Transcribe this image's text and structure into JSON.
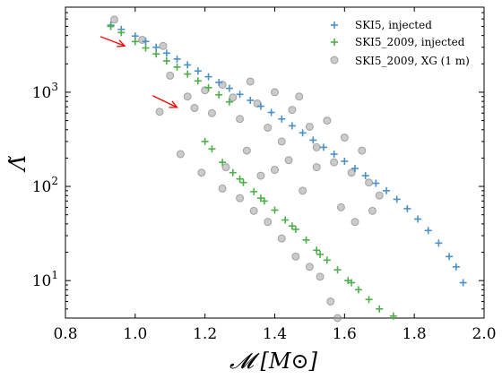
{
  "chart_data": {
    "type": "scatter",
    "xlabel": "𝓜 [M⊙]",
    "ylabel": "Λ̃",
    "xlim": [
      0.8,
      2.0
    ],
    "ylim": [
      4,
      8000
    ],
    "yscale": "log",
    "x_ticks": [
      "0.8",
      "1.0",
      "1.2",
      "1.4",
      "1.6",
      "1.8",
      "2.0"
    ],
    "y_ticks": [
      {
        "base": "10",
        "exp": "1",
        "value": 10
      },
      {
        "base": "10",
        "exp": "2",
        "value": 100
      },
      {
        "base": "10",
        "exp": "3",
        "value": 1000
      }
    ],
    "grid": false,
    "legend_position": "top-right",
    "series": [
      {
        "name": "SKI5, injected",
        "marker": "plus",
        "color": "#4a90c9",
        "points": [
          [
            0.93,
            5150
          ],
          [
            0.96,
            4650
          ],
          [
            1.0,
            3950
          ],
          [
            1.03,
            3460
          ],
          [
            1.06,
            3000
          ],
          [
            1.09,
            2600
          ],
          [
            1.12,
            2250
          ],
          [
            1.15,
            1950
          ],
          [
            1.18,
            1680
          ],
          [
            1.21,
            1460
          ],
          [
            1.24,
            1270
          ],
          [
            1.27,
            1100
          ],
          [
            1.3,
            950
          ],
          [
            1.33,
            820
          ],
          [
            1.36,
            710
          ],
          [
            1.39,
            610
          ],
          [
            1.42,
            520
          ],
          [
            1.45,
            440
          ],
          [
            1.48,
            370
          ],
          [
            1.51,
            310
          ],
          [
            1.54,
            260
          ],
          [
            1.57,
            220
          ],
          [
            1.6,
            185
          ],
          [
            1.63,
            155
          ],
          [
            1.66,
            130
          ],
          [
            1.69,
            108
          ],
          [
            1.72,
            90
          ],
          [
            1.75,
            73
          ],
          [
            1.78,
            58
          ],
          [
            1.81,
            45
          ],
          [
            1.84,
            34
          ],
          [
            1.87,
            25
          ],
          [
            1.9,
            18
          ],
          [
            1.92,
            14
          ],
          [
            1.94,
            9.5
          ]
        ]
      },
      {
        "name": "SKI5_2009, injected",
        "marker": "plus",
        "color": "#4daf4a",
        "points": [
          [
            0.93,
            5000
          ],
          [
            0.96,
            4300
          ],
          [
            1.0,
            3450
          ],
          [
            1.03,
            2950
          ],
          [
            1.06,
            2550
          ],
          [
            1.09,
            2150
          ],
          [
            1.12,
            1850
          ],
          [
            1.15,
            1560
          ],
          [
            1.18,
            1320
          ],
          [
            1.21,
            1120
          ],
          [
            1.24,
            940
          ],
          [
            1.27,
            790
          ],
          [
            1.2,
            300
          ],
          [
            1.25,
            180
          ],
          [
            1.28,
            140
          ],
          [
            1.31,
            110
          ],
          [
            1.34,
            88
          ],
          [
            1.37,
            70
          ],
          [
            1.4,
            56
          ],
          [
            1.43,
            44
          ],
          [
            1.46,
            35
          ],
          [
            1.49,
            27
          ],
          [
            1.52,
            21
          ],
          [
            1.55,
            16.5
          ],
          [
            1.58,
            13
          ],
          [
            1.61,
            10
          ],
          [
            1.64,
            8
          ],
          [
            1.67,
            6.3
          ],
          [
            1.7,
            5
          ],
          [
            1.74,
            4.2
          ],
          [
            1.22,
            250
          ],
          [
            1.3,
            120
          ],
          [
            1.36,
            75
          ],
          [
            1.45,
            38
          ],
          [
            1.53,
            19
          ],
          [
            1.62,
            9.5
          ]
        ]
      },
      {
        "name": "SKI5_2009, XG (1 m)",
        "marker": "circle",
        "color": "#a0a0a0",
        "points": [
          [
            0.94,
            5900
          ],
          [
            1.02,
            3600
          ],
          [
            1.08,
            3100
          ],
          [
            1.1,
            1500
          ],
          [
            1.15,
            900
          ],
          [
            1.17,
            680
          ],
          [
            1.2,
            1050
          ],
          [
            1.22,
            600
          ],
          [
            1.25,
            1200
          ],
          [
            1.28,
            880
          ],
          [
            1.3,
            520
          ],
          [
            1.33,
            1300
          ],
          [
            1.35,
            760
          ],
          [
            1.38,
            420
          ],
          [
            1.4,
            1000
          ],
          [
            1.42,
            300
          ],
          [
            1.45,
            650
          ],
          [
            1.47,
            900
          ],
          [
            1.5,
            430
          ],
          [
            1.52,
            260
          ],
          [
            1.55,
            500
          ],
          [
            1.57,
            180
          ],
          [
            1.6,
            330
          ],
          [
            1.62,
            140
          ],
          [
            1.65,
            240
          ],
          [
            1.67,
            110
          ],
          [
            1.7,
            80
          ],
          [
            1.13,
            220
          ],
          [
            1.19,
            140
          ],
          [
            1.25,
            95
          ],
          [
            1.3,
            75
          ],
          [
            1.34,
            55
          ],
          [
            1.38,
            42
          ],
          [
            1.42,
            28
          ],
          [
            1.46,
            18
          ],
          [
            1.5,
            14
          ],
          [
            1.53,
            11
          ],
          [
            1.56,
            6
          ],
          [
            1.58,
            4
          ],
          [
            1.36,
            130
          ],
          [
            1.44,
            190
          ],
          [
            1.48,
            90
          ],
          [
            1.26,
            160
          ],
          [
            1.32,
            240
          ],
          [
            1.4,
            150
          ],
          [
            1.52,
            160
          ],
          [
            1.59,
            60
          ],
          [
            1.63,
            42
          ],
          [
            1.68,
            55
          ],
          [
            1.07,
            620
          ]
        ]
      }
    ],
    "annotations": [
      {
        "type": "arrow",
        "color": "#ff0000",
        "from": [
          0.9,
          3900
        ],
        "to": [
          0.97,
          3100
        ]
      },
      {
        "type": "arrow",
        "color": "#ff0000",
        "from": [
          1.05,
          920
        ],
        "to": [
          1.12,
          690
        ]
      }
    ]
  }
}
